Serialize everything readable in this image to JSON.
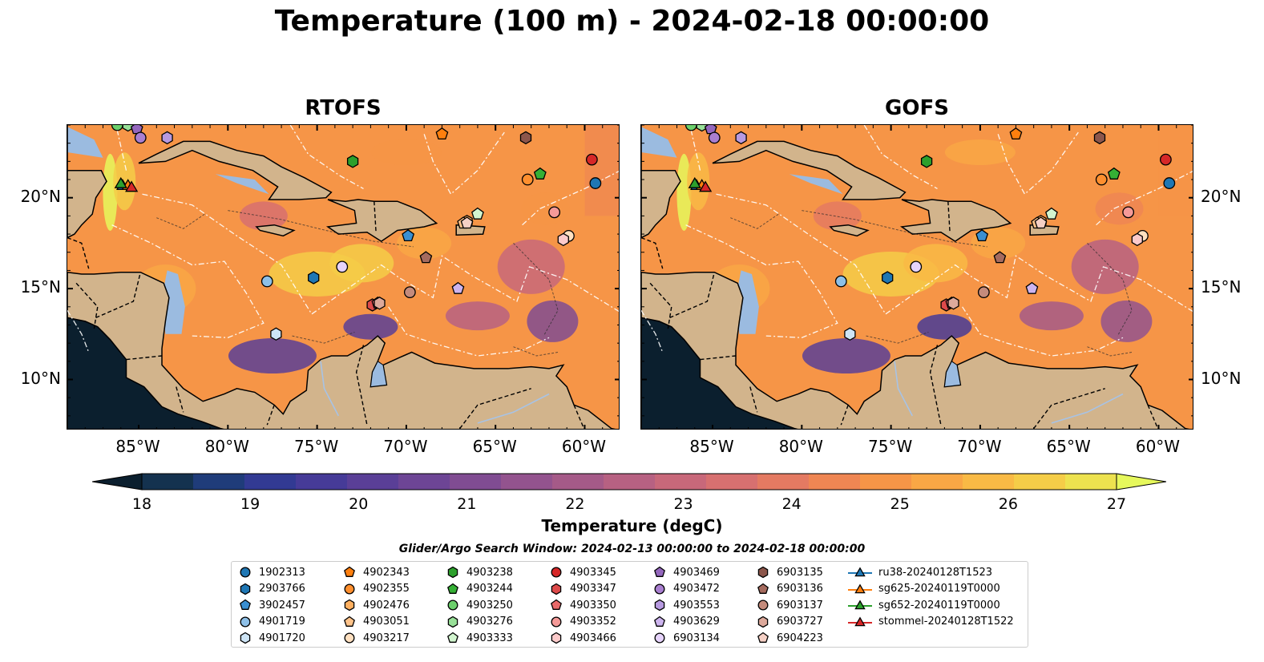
{
  "title": "Temperature (100 m) - 2024-02-18 00:00:00",
  "panels": [
    {
      "title": "RTOFS"
    },
    {
      "title": "GOFS"
    }
  ],
  "axes": {
    "lon_labels": [
      "85°W",
      "80°W",
      "75°W",
      "70°W",
      "65°W",
      "60°W"
    ],
    "lon_values": [
      -85,
      -80,
      -75,
      -70,
      -65,
      -60
    ],
    "lat_labels": [
      "20°N",
      "15°N",
      "10°N"
    ],
    "lat_values": [
      20,
      15,
      10
    ],
    "lon_range": [
      -89,
      -58
    ],
    "lat_range": [
      7.2,
      24
    ]
  },
  "colorbar": {
    "label": "Temperature (degC)",
    "ticks": [
      "18",
      "19",
      "20",
      "21",
      "22",
      "23",
      "24",
      "25",
      "26",
      "27"
    ],
    "range": [
      18,
      27
    ],
    "colors": [
      "#0b1f2e",
      "#14324f",
      "#1f3c7a",
      "#323a93",
      "#463b98",
      "#5a3f97",
      "#6d4595",
      "#804c92",
      "#93538e",
      "#a55a88",
      "#b76182",
      "#c8687a",
      "#d77070",
      "#e47a62",
      "#ef8653",
      "#f69547",
      "#f9a745",
      "#f9ba45",
      "#f5cd48",
      "#ede24f",
      "#e6f85c"
    ],
    "extend": "both"
  },
  "legend": {
    "title": "Glider/Argo Search Window: 2024-02-13 00:00:00 to 2024-02-18 00:00:00",
    "items": [
      {
        "label": "1902313",
        "marker": "circle",
        "color": "#1f77b4"
      },
      {
        "label": "2903766",
        "marker": "hexagon",
        "color": "#1f77b4"
      },
      {
        "label": "3902457",
        "marker": "pentagon",
        "color": "#3a8fd1"
      },
      {
        "label": "4901719",
        "marker": "circle",
        "color": "#8ec0e8"
      },
      {
        "label": "4901720",
        "marker": "hexagon",
        "color": "#cde4f5"
      },
      {
        "label": "4902343",
        "marker": "pentagon",
        "color": "#ff7f0e"
      },
      {
        "label": "4902355",
        "marker": "circle",
        "color": "#ff8f2e"
      },
      {
        "label": "4902476",
        "marker": "hexagon",
        "color": "#ffb060"
      },
      {
        "label": "4903051",
        "marker": "pentagon",
        "color": "#ffc38a"
      },
      {
        "label": "4903217",
        "marker": "circle",
        "color": "#ffe0c0"
      },
      {
        "label": "4903238",
        "marker": "hexagon",
        "color": "#2ca02c"
      },
      {
        "label": "4903244",
        "marker": "pentagon",
        "color": "#35b035"
      },
      {
        "label": "4903250",
        "marker": "circle",
        "color": "#6cd06c"
      },
      {
        "label": "4903276",
        "marker": "hexagon",
        "color": "#98e098"
      },
      {
        "label": "4903333",
        "marker": "pentagon",
        "color": "#d2f5cf"
      },
      {
        "label": "4903345",
        "marker": "circle",
        "color": "#d62728"
      },
      {
        "label": "4903347",
        "marker": "hexagon",
        "color": "#dd4a4a"
      },
      {
        "label": "4903350",
        "marker": "pentagon",
        "color": "#e86a6a"
      },
      {
        "label": "4903352",
        "marker": "circle",
        "color": "#f59a98"
      },
      {
        "label": "4903466",
        "marker": "hexagon",
        "color": "#fccaca"
      },
      {
        "label": "4903469",
        "marker": "pentagon",
        "color": "#9467bd"
      },
      {
        "label": "4903472",
        "marker": "circle",
        "color": "#a97fd0"
      },
      {
        "label": "4903553",
        "marker": "hexagon",
        "color": "#b79ae0"
      },
      {
        "label": "4903629",
        "marker": "pentagon",
        "color": "#cdb4ee"
      },
      {
        "label": "6903134",
        "marker": "circle",
        "color": "#e6d3fb"
      },
      {
        "label": "6903135",
        "marker": "hexagon",
        "color": "#8c564b"
      },
      {
        "label": "6903136",
        "marker": "pentagon",
        "color": "#a56b5e"
      },
      {
        "label": "6903137",
        "marker": "circle",
        "color": "#c48b7c"
      },
      {
        "label": "6903727",
        "marker": "hexagon",
        "color": "#dda99b"
      },
      {
        "label": "6904223",
        "marker": "pentagon",
        "color": "#f5d0c5"
      },
      {
        "label": "ru38-20240128T1523",
        "marker": "triangle-line",
        "color": "#1f77b4"
      },
      {
        "label": "sg625-20240119T0000",
        "marker": "triangle-line",
        "color": "#ff7f0e"
      },
      {
        "label": "sg652-20240119T0000",
        "marker": "triangle-line",
        "color": "#2ca02c"
      },
      {
        "label": "stommel-20240128T1522",
        "marker": "triangle-line",
        "color": "#d62728"
      }
    ]
  },
  "floats": [
    {
      "id": "1902313",
      "lon": -59.4,
      "lat": 20.8
    },
    {
      "id": "2903766",
      "lon": -75.2,
      "lat": 15.6
    },
    {
      "id": "3902457",
      "lon": -69.9,
      "lat": 17.9
    },
    {
      "id": "4901719",
      "lon": -77.8,
      "lat": 15.4
    },
    {
      "id": "4901720",
      "lon": -77.3,
      "lat": 12.5
    },
    {
      "id": "4902343",
      "lon": -68.0,
      "lat": 23.5
    },
    {
      "id": "4902355",
      "lon": -63.2,
      "lat": 21.0
    },
    {
      "id": "4902476",
      "lon": -66.6,
      "lat": 18.7
    },
    {
      "id": "4903051",
      "lon": -66.8,
      "lat": 18.6
    },
    {
      "id": "4903217",
      "lon": -60.9,
      "lat": 17.9
    },
    {
      "id": "4903238",
      "lon": -73.0,
      "lat": 22.0
    },
    {
      "id": "4903244",
      "lon": -62.5,
      "lat": 21.3
    },
    {
      "id": "4903250",
      "lon": -86.2,
      "lat": 24.0
    },
    {
      "id": "4903276",
      "lon": -85.6,
      "lat": 24.0
    },
    {
      "id": "4903333",
      "lon": -66.0,
      "lat": 19.1
    },
    {
      "id": "4903345",
      "lon": -59.6,
      "lat": 22.1
    },
    {
      "id": "4903347",
      "lon": -71.9,
      "lat": 14.1
    },
    {
      "id": "4903350",
      "lon": -71.6,
      "lat": 14.2
    },
    {
      "id": "4903352",
      "lon": -61.7,
      "lat": 19.2
    },
    {
      "id": "4903466",
      "lon": -61.2,
      "lat": 17.7
    },
    {
      "id": "4903469",
      "lon": -85.1,
      "lat": 23.8
    },
    {
      "id": "4903472",
      "lon": -84.9,
      "lat": 23.3
    },
    {
      "id": "4903553",
      "lon": -83.4,
      "lat": 23.3
    },
    {
      "id": "4903629",
      "lon": -67.1,
      "lat": 15.0
    },
    {
      "id": "6903134",
      "lon": -73.6,
      "lat": 16.2
    },
    {
      "id": "6903135",
      "lon": -63.3,
      "lat": 23.3
    },
    {
      "id": "6903136",
      "lon": -68.9,
      "lat": 16.7
    },
    {
      "id": "6903137",
      "lon": -69.8,
      "lat": 14.8
    },
    {
      "id": "6903727",
      "lon": -71.5,
      "lat": 14.2
    },
    {
      "id": "6904223",
      "lon": -66.6,
      "lat": 18.6
    }
  ],
  "gliders": [
    {
      "id": "ru38-20240128T1523",
      "lon": -85.9,
      "lat": 20.7
    },
    {
      "id": "sg625-20240119T0000",
      "lon": -85.6,
      "lat": 20.7
    },
    {
      "id": "sg652-20240119T0000",
      "lon": -86.0,
      "lat": 20.8
    },
    {
      "id": "stommel-20240128T1522",
      "lon": -85.4,
      "lat": 20.6
    }
  ]
}
